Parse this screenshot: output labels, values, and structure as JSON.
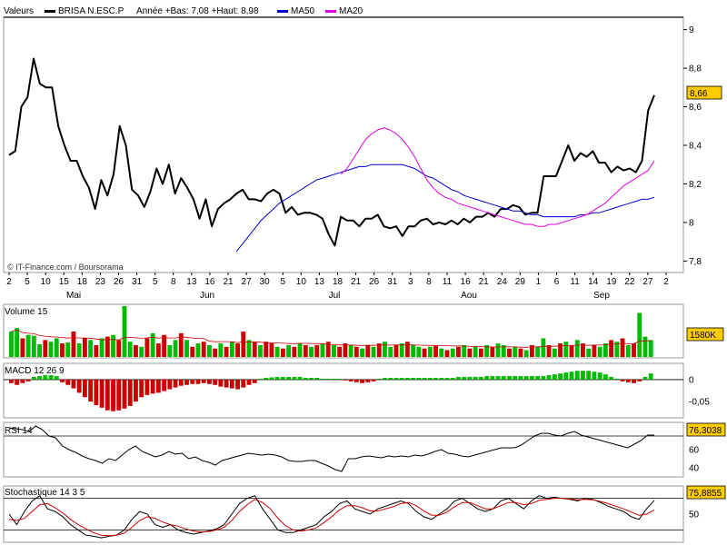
{
  "header": {
    "label": "Valeurs",
    "ticker": "BRISA N.ESC.P",
    "range_text": "Année +Bas: 7,08 +Haut: 8,98",
    "ma50_label": "MA50",
    "ma20_label": "MA20"
  },
  "credit": "© IT-Finance.com / Boursorama",
  "colors": {
    "price": "#000000",
    "ma50": "#0000cc",
    "ma20": "#e000e0",
    "up": "#00bb00",
    "down": "#cc0000",
    "badge": "#ffcc00",
    "grid": "#cccccc"
  },
  "chart_data": [
    {
      "type": "line",
      "title": "BRISA N.ESC.P",
      "ylim": [
        7.75,
        9.05
      ],
      "yticks": [
        7.8,
        8,
        8.2,
        8.4,
        8.6,
        8.8,
        9
      ],
      "ytick_labels": [
        "7,8",
        "8",
        "8,2",
        "8,4",
        "8,6",
        "8,8",
        "9"
      ],
      "x_day_labels": [
        "2",
        "5",
        "10",
        "15",
        "18",
        "23",
        "26",
        "31",
        "5",
        "8",
        "13",
        "16",
        "21",
        "27",
        "30",
        "5",
        "10",
        "13",
        "18",
        "21",
        "26",
        "31",
        "3",
        "8",
        "11",
        "16",
        "21",
        "24",
        "29",
        "1",
        "6",
        "11",
        "14",
        "19",
        "22",
        "27",
        "2"
      ],
      "month_labels": [
        "Mai",
        "Jun",
        "Jul",
        "Aou",
        "Sep"
      ],
      "last_value_label": "8,66",
      "series": [
        {
          "name": "BRISA N.ESC.P",
          "values": [
            8.35,
            8.37,
            8.6,
            8.65,
            8.85,
            8.72,
            8.7,
            8.7,
            8.5,
            8.4,
            8.32,
            8.32,
            8.24,
            8.18,
            8.07,
            8.22,
            8.14,
            8.25,
            8.5,
            8.4,
            8.17,
            8.14,
            8.08,
            8.16,
            8.28,
            8.2,
            8.3,
            8.15,
            8.23,
            8.18,
            8.12,
            8.02,
            8.12,
            7.98,
            8.07,
            8.1,
            8.12,
            8.15,
            8.17,
            8.12,
            8.12,
            8.11,
            8.15,
            8.17,
            8.15,
            8.05,
            8.08,
            8.04,
            8.05,
            8.05,
            8.04,
            8.02,
            7.94,
            7.88,
            8.03,
            8.01,
            8.01,
            7.98,
            8.02,
            8.02,
            8.04,
            7.98,
            7.97,
            7.98,
            7.93,
            7.98,
            7.98,
            8.01,
            8.02,
            7.99,
            8.0,
            7.99,
            8.01,
            7.99,
            8.02,
            8.0,
            8.03,
            8.03,
            8.05,
            8.03,
            8.07,
            8.07,
            8.09,
            8.08,
            8.04,
            8.05,
            8.05,
            8.24,
            8.24,
            8.24,
            8.32,
            8.4,
            8.32,
            8.36,
            8.34,
            8.37,
            8.31,
            8.31,
            8.26,
            8.29,
            8.27,
            8.28,
            8.26,
            8.32,
            8.58,
            8.66
          ]
        },
        {
          "name": "MA50",
          "values": [
            7.85,
            7.89,
            7.93,
            7.97,
            8.01,
            8.04,
            8.07,
            8.1,
            8.12,
            8.14,
            8.16,
            8.18,
            8.2,
            8.22,
            8.23,
            8.24,
            8.25,
            8.26,
            8.27,
            8.28,
            8.29,
            8.29,
            8.3,
            8.3,
            8.3,
            8.3,
            8.3,
            8.3,
            8.29,
            8.28,
            8.26,
            8.24,
            8.23,
            8.21,
            8.19,
            8.17,
            8.16,
            8.14,
            8.13,
            8.12,
            8.11,
            8.1,
            8.09,
            8.08,
            8.07,
            8.06,
            8.06,
            8.05,
            8.04,
            8.04,
            8.03,
            8.03,
            8.03,
            8.03,
            8.03,
            8.03,
            8.04,
            8.04,
            8.05,
            8.05,
            8.06,
            8.07,
            8.08,
            8.09,
            8.1,
            8.11,
            8.12,
            8.12,
            8.13
          ]
        },
        {
          "name": "MA20",
          "values": [
            8.25,
            8.28,
            8.33,
            8.38,
            8.43,
            8.46,
            8.48,
            8.49,
            8.48,
            8.46,
            8.43,
            8.39,
            8.34,
            8.28,
            8.22,
            8.18,
            8.15,
            8.13,
            8.12,
            8.1,
            8.09,
            8.08,
            8.07,
            8.06,
            8.05,
            8.04,
            8.03,
            8.02,
            8.01,
            8.0,
            7.99,
            7.99,
            7.98,
            7.98,
            7.99,
            7.99,
            8.0,
            8.01,
            8.02,
            8.03,
            8.04,
            8.06,
            8.08,
            8.1,
            8.13,
            8.16,
            8.19,
            8.21,
            8.23,
            8.25,
            8.27,
            8.32
          ]
        }
      ]
    },
    {
      "type": "bar",
      "title": "Volume 15",
      "last_value_label": "1580K",
      "values": [
        30,
        34,
        22,
        26,
        25,
        15,
        20,
        18,
        22,
        16,
        17,
        30,
        16,
        22,
        20,
        14,
        22,
        24,
        26,
        20,
        60,
        18,
        14,
        12,
        22,
        28,
        16,
        26,
        14,
        20,
        28,
        20,
        12,
        16,
        18,
        14,
        10,
        16,
        12,
        18,
        16,
        30,
        20,
        18,
        14,
        18,
        16,
        12,
        10,
        14,
        12,
        16,
        14,
        12,
        14,
        16,
        18,
        14,
        12,
        16,
        14,
        12,
        10,
        14,
        12,
        16,
        18,
        12,
        14,
        16,
        18,
        14,
        12,
        10,
        12,
        14,
        10,
        8,
        10,
        12,
        14,
        10,
        12,
        10,
        14,
        12,
        16,
        14,
        10,
        12,
        10,
        8,
        14,
        12,
        22,
        14,
        10,
        16,
        18,
        14,
        20,
        16,
        10,
        14,
        12,
        16,
        20,
        18,
        22,
        14,
        16,
        52,
        24,
        20
      ],
      "colors": [
        "g",
        "g",
        "r",
        "g",
        "g",
        "g",
        "r",
        "g",
        "g",
        "r",
        "g",
        "r",
        "g",
        "r",
        "g",
        "r",
        "g",
        "r",
        "g",
        "r",
        "g",
        "g",
        "r",
        "g",
        "r",
        "g",
        "r",
        "r",
        "g",
        "g",
        "r",
        "g",
        "r",
        "g",
        "r",
        "g",
        "r",
        "g",
        "r",
        "g",
        "r",
        "r",
        "g",
        "r",
        "g",
        "r",
        "r",
        "g",
        "r",
        "g",
        "r",
        "g",
        "r",
        "g",
        "r",
        "g",
        "r",
        "g",
        "r",
        "r",
        "g",
        "r",
        "g",
        "r",
        "g",
        "r",
        "g",
        "g",
        "r",
        "g",
        "r",
        "g",
        "g",
        "r",
        "g",
        "r",
        "g",
        "r",
        "g",
        "r",
        "g",
        "r",
        "g",
        "r",
        "g",
        "r",
        "g",
        "g",
        "r",
        "g",
        "r",
        "g",
        "r",
        "g",
        "g",
        "r",
        "g",
        "r",
        "g",
        "r",
        "g",
        "r",
        "g",
        "r",
        "g",
        "g",
        "r",
        "g",
        "r",
        "g",
        "r",
        "g",
        "g",
        "g"
      ]
    },
    {
      "type": "bar",
      "title": "MACD 12 26 9",
      "ylim": [
        -0.085,
        0.035
      ],
      "yticks": [
        0,
        -0.05
      ],
      "ytick_labels": [
        "0",
        "-0,05"
      ],
      "values": [
        -0.008,
        -0.012,
        -0.008,
        -0.004,
        0.006,
        0.008,
        0.01,
        0.01,
        0.008,
        -0.006,
        -0.012,
        -0.02,
        -0.03,
        -0.04,
        -0.05,
        -0.058,
        -0.064,
        -0.07,
        -0.072,
        -0.07,
        -0.066,
        -0.06,
        -0.05,
        -0.04,
        -0.035,
        -0.032,
        -0.03,
        -0.026,
        -0.022,
        -0.018,
        -0.014,
        -0.012,
        -0.01,
        -0.01,
        -0.008,
        -0.01,
        -0.012,
        -0.016,
        -0.018,
        -0.02,
        -0.022,
        -0.018,
        -0.012,
        -0.008,
        0.002,
        0.004,
        0.005,
        0.006,
        0.006,
        0.006,
        0.006,
        0.006,
        0.004,
        0.004,
        0.004,
        0.002,
        0.002,
        0.002,
        0.002,
        -0.002,
        -0.004,
        -0.006,
        -0.008,
        -0.006,
        -0.004,
        0.002,
        0.004,
        0.004,
        0.004,
        0.004,
        0.004,
        0.004,
        0.004,
        0.004,
        0.004,
        0.004,
        0.004,
        0.004,
        0.004,
        0.006,
        0.006,
        0.006,
        0.006,
        0.006,
        0.008,
        0.008,
        0.008,
        0.008,
        0.008,
        0.008,
        0.008,
        0.008,
        0.008,
        0.008,
        0.008,
        0.01,
        0.012,
        0.014,
        0.016,
        0.018,
        0.02,
        0.02,
        0.02,
        0.018,
        0.016,
        0.012,
        0.006,
        0.002,
        -0.004,
        -0.006,
        -0.008,
        -0.004,
        0.006,
        0.014
      ]
    },
    {
      "type": "line",
      "title": "RSI 14",
      "ylim": [
        32,
        88
      ],
      "yticks": [
        60,
        40
      ],
      "ytick_labels": [
        "60",
        "40"
      ],
      "ref_lines": [
        75
      ],
      "last_value_label": "76,3038",
      "series": [
        {
          "name": "RSI 14",
          "values": [
            84,
            83,
            82,
            80,
            86,
            82,
            75,
            73,
            64,
            60,
            57,
            53,
            50,
            48,
            45,
            50,
            48,
            54,
            60,
            64,
            58,
            55,
            52,
            54,
            58,
            55,
            56,
            50,
            52,
            48,
            46,
            43,
            48,
            50,
            52,
            54,
            56,
            55,
            54,
            55,
            54,
            52,
            48,
            47,
            47,
            48,
            48,
            45,
            42,
            38,
            36,
            50,
            50,
            52,
            53,
            52,
            51,
            53,
            52,
            53,
            52,
            54,
            53,
            55,
            58,
            60,
            56,
            55,
            53,
            52,
            54,
            56,
            58,
            60,
            62,
            62,
            62,
            65,
            70,
            75,
            78,
            78,
            76,
            75,
            78,
            80,
            76,
            74,
            72,
            70,
            68,
            66,
            64,
            62,
            66,
            70,
            76,
            76
          ]
        }
      ]
    },
    {
      "type": "line",
      "title": "Stochastique 14 3 5",
      "ylim": [
        0,
        100
      ],
      "yticks": [
        50
      ],
      "ytick_labels": [
        "50"
      ],
      "ref_lines": [
        80,
        20
      ],
      "last_value_label": "75,8855",
      "series": [
        {
          "name": "%K",
          "values": [
            50,
            30,
            55,
            75,
            85,
            60,
            55,
            45,
            30,
            20,
            10,
            8,
            5,
            8,
            10,
            20,
            40,
            55,
            50,
            30,
            25,
            30,
            20,
            15,
            12,
            15,
            18,
            22,
            30,
            50,
            70,
            80,
            85,
            60,
            40,
            20,
            15,
            15,
            20,
            25,
            30,
            45,
            55,
            70,
            75,
            60,
            55,
            50,
            60,
            65,
            70,
            75,
            70,
            55,
            45,
            40,
            50,
            60,
            75,
            80,
            70,
            60,
            55,
            60,
            75,
            80,
            70,
            60,
            75,
            85,
            80,
            82,
            80,
            78,
            75,
            80,
            78,
            72,
            65,
            60,
            55,
            45,
            40,
            60,
            76
          ]
        },
        {
          "name": "%D",
          "values": [
            40,
            38,
            42,
            55,
            68,
            70,
            62,
            52,
            40,
            30,
            22,
            15,
            10,
            9,
            10,
            14,
            25,
            38,
            45,
            42,
            35,
            30,
            27,
            22,
            18,
            16,
            17,
            20,
            25,
            38,
            55,
            68,
            78,
            72,
            60,
            42,
            28,
            20,
            18,
            20,
            24,
            34,
            45,
            58,
            66,
            66,
            62,
            56,
            56,
            60,
            64,
            70,
            72,
            66,
            56,
            48,
            48,
            54,
            64,
            72,
            72,
            66,
            60,
            60,
            66,
            72,
            72,
            68,
            70,
            76,
            78,
            80,
            80,
            79,
            77,
            78,
            77,
            74,
            70,
            65,
            60,
            54,
            48,
            50,
            58
          ]
        }
      ]
    }
  ]
}
